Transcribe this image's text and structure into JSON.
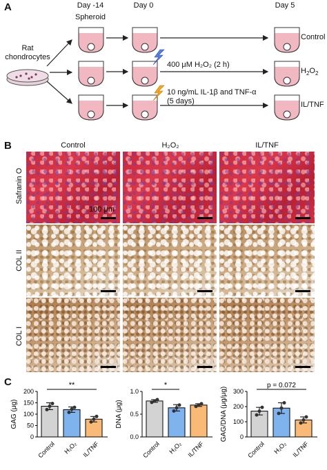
{
  "panel_a": {
    "label": "A",
    "days": [
      "Day -14",
      "Day 0",
      "Day 5"
    ],
    "spheroid": "Spheroid",
    "source_line1": "Rat",
    "source_line2": "chondrocytes",
    "row1_label": "Control",
    "row2_label_main": "H",
    "row2_label_sub": "2",
    "row2_label_tail": "O",
    "row2_label_sub2": "2",
    "row2_treat": "400 μM H₂O₂ (2 h)",
    "row3_label": "IL/TNF",
    "row3_treat_line1": "10 ng/mL IL-1β and TNF-α",
    "row3_treat_line2": "(5 days)",
    "colors": {
      "medium": "#f2b8c2",
      "lightning_blue": "#5b7fd9",
      "lightning_orange": "#f5a623"
    }
  },
  "panel_b": {
    "label": "B",
    "columns": [
      "Control",
      "H₂O₂",
      "IL/TNF"
    ],
    "rows": [
      "Safranin O",
      "COL II",
      "COL I"
    ],
    "scale_label": "100 μm"
  },
  "panel_c": {
    "label": "C"
  },
  "chart_data": [
    {
      "type": "bar",
      "ylabel": "GAG (μg)",
      "categories": [
        "Control",
        "H₂O₂",
        "IL/TNF"
      ],
      "values": [
        135,
        120,
        78
      ],
      "errors": [
        15,
        12,
        12
      ],
      "points": [
        [
          120,
          135,
          147
        ],
        [
          108,
          122,
          130
        ],
        [
          66,
          78,
          90
        ]
      ],
      "ylim": [
        0,
        200
      ],
      "yticks": [
        "0",
        "50",
        "100",
        "150",
        "200"
      ],
      "significance": "**",
      "colors": [
        "#d3d3d3",
        "#7fb3ee",
        "#f9b977"
      ]
    },
    {
      "type": "bar",
      "ylabel": "DNA (μg)",
      "categories": [
        "Control",
        "H₂O₂",
        "IL/TNF"
      ],
      "values": [
        0.79,
        0.64,
        0.7
      ],
      "errors": [
        0.03,
        0.07,
        0.03
      ],
      "points": [
        [
          0.76,
          0.79,
          0.82
        ],
        [
          0.57,
          0.64,
          0.7
        ],
        [
          0.67,
          0.7,
          0.73
        ]
      ],
      "ylim": [
        0,
        1.0
      ],
      "yticks": [
        "0.0",
        "0.5",
        "1.0"
      ],
      "significance": "*",
      "colors": [
        "#d3d3d3",
        "#7fb3ee",
        "#f9b977"
      ]
    },
    {
      "type": "bar",
      "ylabel": "GAG/DNA (μg/μg)",
      "categories": [
        "Control",
        "H₂O₂",
        "IL/TNF"
      ],
      "values": [
        170,
        190,
        112
      ],
      "errors": [
        25,
        35,
        20
      ],
      "points": [
        [
          145,
          170,
          195
        ],
        [
          155,
          190,
          225
        ],
        [
          92,
          112,
          132
        ]
      ],
      "ylim": [
        0,
        300
      ],
      "yticks": [
        "0",
        "100",
        "200",
        "300"
      ],
      "significance": "p = 0.072",
      "colors": [
        "#d3d3d3",
        "#7fb3ee",
        "#f9b977"
      ]
    }
  ]
}
